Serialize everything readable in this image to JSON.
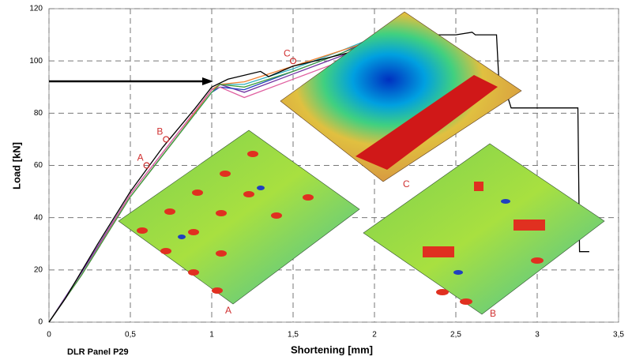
{
  "chart_data": {
    "type": "line",
    "xlabel": "Shortening [mm]",
    "ylabel": "Load [kN]",
    "footer": "DLR Panel P29",
    "xlim": [
      0,
      3.5
    ],
    "ylim": [
      0,
      120
    ],
    "xticks": [
      0,
      {
        "value": 0.5,
        "label": "0,5"
      },
      1,
      {
        "value": 1.5,
        "label": "1,5"
      },
      2,
      {
        "value": 2.5,
        "label": "2,5"
      },
      3,
      {
        "value": 3.5,
        "label": "3,5"
      }
    ],
    "yticks": [
      0,
      20,
      40,
      60,
      80,
      100,
      120
    ],
    "grid": true,
    "series": [
      {
        "color": "#7030a0",
        "x": [
          0,
          0.2,
          0.5,
          0.8,
          1.0,
          1.05,
          1.2,
          1.5,
          1.8,
          2.0
        ],
        "values": [
          0,
          19,
          49,
          73,
          89,
          91,
          88,
          95,
          102,
          108
        ]
      },
      {
        "color": "#2040c0",
        "x": [
          0,
          0.2,
          0.5,
          0.8,
          1.0,
          1.05,
          1.2,
          1.5,
          1.8,
          2.0
        ],
        "values": [
          0,
          18,
          48,
          72,
          88,
          90,
          89,
          96,
          103,
          109
        ]
      },
      {
        "color": "#30b0c0",
        "x": [
          0,
          0.2,
          0.5,
          0.8,
          1.0,
          1.05,
          1.2,
          1.5,
          1.8,
          2.0
        ],
        "values": [
          0,
          18,
          48,
          72,
          88,
          91,
          91,
          97,
          104,
          109
        ]
      },
      {
        "color": "#f08030",
        "x": [
          0,
          0.2,
          0.5,
          0.8,
          1.0,
          1.05,
          1.2,
          1.5,
          1.8,
          2.0
        ],
        "values": [
          0,
          18,
          48,
          72,
          89,
          91,
          92,
          98,
          104,
          108
        ]
      },
      {
        "color": "#e060a0",
        "x": [
          0,
          0.2,
          0.5,
          0.8,
          1.0,
          1.05,
          1.2,
          1.5,
          1.8,
          2.0
        ],
        "values": [
          0,
          18,
          49,
          73,
          89,
          90,
          86,
          93,
          100,
          106
        ]
      },
      {
        "color": "#40a040",
        "x": [
          0,
          0.2,
          0.5,
          0.8,
          1.0,
          1.05,
          1.2,
          1.5,
          1.8,
          2.0
        ],
        "values": [
          0,
          18,
          48,
          72,
          88,
          91,
          90,
          96,
          103,
          108
        ]
      },
      {
        "color": "#000000",
        "x": [
          0,
          0.1,
          0.3,
          0.5,
          0.7,
          0.9,
          1.0,
          1.1,
          1.3,
          1.35,
          1.5,
          1.7,
          1.9,
          2.0,
          2.2,
          2.4,
          2.5,
          2.6,
          2.62,
          2.75,
          2.77,
          2.82,
          2.84,
          3.25,
          3.26,
          3.32
        ],
        "values": [
          0,
          9,
          30,
          50,
          67,
          82,
          90,
          93,
          96,
          94,
          98,
          101,
          104,
          107,
          109,
          110,
          110,
          111,
          110,
          110,
          86,
          86,
          82,
          82,
          27,
          27
        ]
      }
    ],
    "annotations": [
      {
        "text": "A",
        "x": 0.6,
        "y": 60
      },
      {
        "text": "B",
        "x": 0.72,
        "y": 70
      },
      {
        "text": "C",
        "x": 1.5,
        "y": 100
      }
    ],
    "inset_labels": [
      "A",
      "B",
      "C"
    ]
  }
}
